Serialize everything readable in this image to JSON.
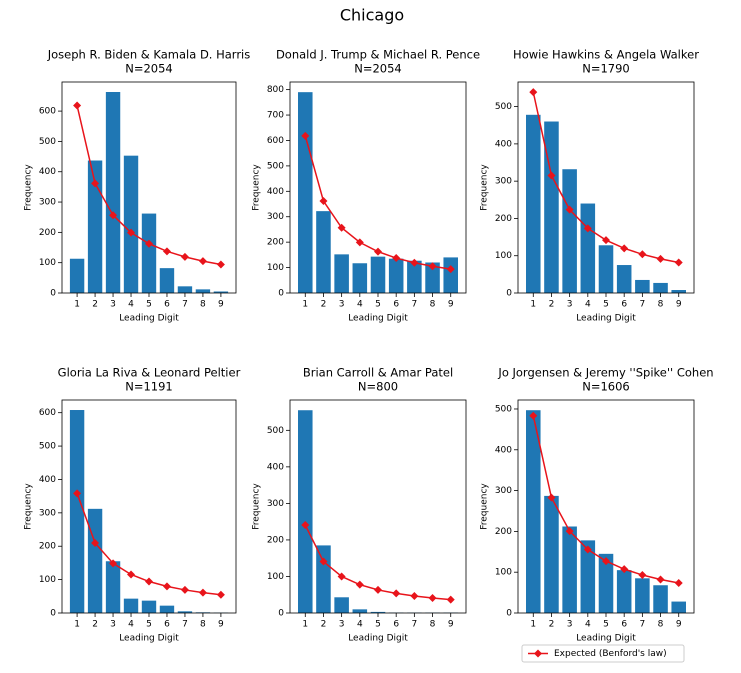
{
  "title": "Chicago",
  "chart_data": [
    {
      "type": "bar",
      "title": "Joseph R. Biden & Kamala D. Harris",
      "subtitle": "N=2054",
      "x_label": "Leading Digit",
      "y_label": "Frequency",
      "categories": [
        "1",
        "2",
        "3",
        "4",
        "5",
        "6",
        "7",
        "8",
        "9"
      ],
      "series": [
        {
          "type": "bar",
          "color": "#1f77b4",
          "values": [
            113,
            437,
            663,
            453,
            262,
            82,
            22,
            12,
            5
          ]
        },
        {
          "type": "line",
          "color": "#e8141b",
          "values": [
            618.3,
            361.7,
            256.6,
            199.1,
            162.6,
            137.5,
            119.1,
            105.1,
            94.0
          ]
        }
      ],
      "ylim": [
        0,
        696
      ],
      "yticks": [
        0,
        100,
        200,
        300,
        400,
        500,
        600
      ]
    },
    {
      "type": "bar",
      "title": "Donald J. Trump & Michael R. Pence",
      "subtitle": "N=2054",
      "x_label": "Leading Digit",
      "y_label": "Frequency",
      "categories": [
        "1",
        "2",
        "3",
        "4",
        "5",
        "6",
        "7",
        "8",
        "9"
      ],
      "series": [
        {
          "type": "bar",
          "color": "#1f77b4",
          "values": [
            790,
            322,
            152,
            117,
            143,
            135,
            127,
            120,
            140
          ]
        },
        {
          "type": "line",
          "color": "#e8141b",
          "values": [
            618.3,
            361.7,
            256.6,
            199.1,
            162.6,
            137.5,
            119.1,
            105.1,
            94.0
          ]
        }
      ],
      "ylim": [
        0,
        830
      ],
      "yticks": [
        0,
        100,
        200,
        300,
        400,
        500,
        600,
        700,
        800
      ]
    },
    {
      "type": "bar",
      "title": "Howie Hawkins & Angela Walker",
      "subtitle": "N=1790",
      "x_label": "Leading Digit",
      "y_label": "Frequency",
      "categories": [
        "1",
        "2",
        "3",
        "4",
        "5",
        "6",
        "7",
        "8",
        "9"
      ],
      "series": [
        {
          "type": "bar",
          "color": "#1f77b4",
          "values": [
            478,
            460,
            332,
            240,
            128,
            75,
            35,
            27,
            8
          ]
        },
        {
          "type": "line",
          "color": "#e8141b",
          "values": [
            538.8,
            315.2,
            223.6,
            173.5,
            141.7,
            119.8,
            103.8,
            91.6,
            81.9
          ]
        }
      ],
      "ylim": [
        0,
        566
      ],
      "yticks": [
        0,
        100,
        200,
        300,
        400,
        500
      ]
    },
    {
      "type": "bar",
      "title": "Gloria La Riva & Leonard Peltier",
      "subtitle": "N=1191",
      "x_label": "Leading Digit",
      "y_label": "Frequency",
      "categories": [
        "1",
        "2",
        "3",
        "4",
        "5",
        "6",
        "7",
        "8",
        "9"
      ],
      "series": [
        {
          "type": "bar",
          "color": "#1f77b4",
          "values": [
            608,
            312,
            155,
            43,
            37,
            22,
            5,
            2,
            1
          ]
        },
        {
          "type": "line",
          "color": "#e8141b",
          "values": [
            358.5,
            209.7,
            148.8,
            115.4,
            94.3,
            79.7,
            69.1,
            60.9,
            54.5
          ]
        }
      ],
      "ylim": [
        0,
        638
      ],
      "yticks": [
        0,
        100,
        200,
        300,
        400,
        500,
        600
      ]
    },
    {
      "type": "bar",
      "title": "Brian Carroll & Amar Patel",
      "subtitle": "N=800",
      "x_label": "Leading Digit",
      "y_label": "Frequency",
      "categories": [
        "1",
        "2",
        "3",
        "4",
        "5",
        "6",
        "7",
        "8",
        "9"
      ],
      "series": [
        {
          "type": "bar",
          "color": "#1f77b4",
          "values": [
            555,
            185,
            43,
            10,
            3,
            1,
            1,
            1,
            1
          ]
        },
        {
          "type": "line",
          "color": "#e8141b",
          "values": [
            240.8,
            140.9,
            99.95,
            77.5,
            63.3,
            53.6,
            46.4,
            40.9,
            36.6
          ]
        }
      ],
      "ylim": [
        0,
        583
      ],
      "yticks": [
        0,
        100,
        200,
        300,
        400,
        500
      ]
    },
    {
      "type": "bar",
      "title": "Jo Jorgensen & Jeremy ''Spike'' Cohen",
      "subtitle": "N=1606",
      "x_label": "Leading Digit",
      "y_label": "Frequency",
      "categories": [
        "1",
        "2",
        "3",
        "4",
        "5",
        "6",
        "7",
        "8",
        "9"
      ],
      "series": [
        {
          "type": "bar",
          "color": "#1f77b4",
          "values": [
            497,
            287,
            212,
            178,
            145,
            105,
            85,
            68,
            28
          ]
        },
        {
          "type": "line",
          "name": "Expected (Benford's law)",
          "color": "#e8141b",
          "values": [
            483.5,
            282.8,
            200.7,
            155.6,
            127.2,
            107.5,
            93.1,
            82.1,
            73.5
          ]
        }
      ],
      "ylim": [
        0,
        522
      ],
      "yticks": [
        0,
        100,
        200,
        300,
        400,
        500
      ],
      "legend": "below"
    }
  ]
}
